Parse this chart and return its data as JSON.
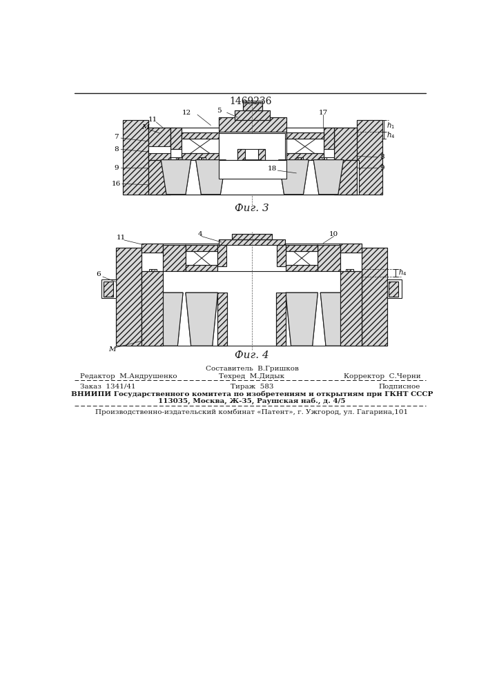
{
  "patent_number": "1469236",
  "fig3_label": "Фиг. 3",
  "fig4_label": "Фиг. 4",
  "bg_color": "#ffffff",
  "line_color": "#1a1a1a",
  "footer": {
    "col1_row1": "Редактор  М.Андрушенко",
    "col2_row1_top": "Составитель  В.Гришков",
    "col2_row1_bot": "Техред  М.Дидык",
    "col3_row1": "Корректор  С.Черни",
    "col1_row2": "Заказ  1341/41",
    "col2_row2": "Тираж  583",
    "col3_row2": "Подписное",
    "vniiipi_line": "ВНИИПИ Государственного комитета по изобретениям и открытиям при ГКНТ СССР",
    "address_line": "113035, Москва, Ж-35, Раушская наб., д. 4/5",
    "production_line": "Производственно-издательский комбинат «Патент», г. Ужгород, ул. Гагарина,101"
  }
}
